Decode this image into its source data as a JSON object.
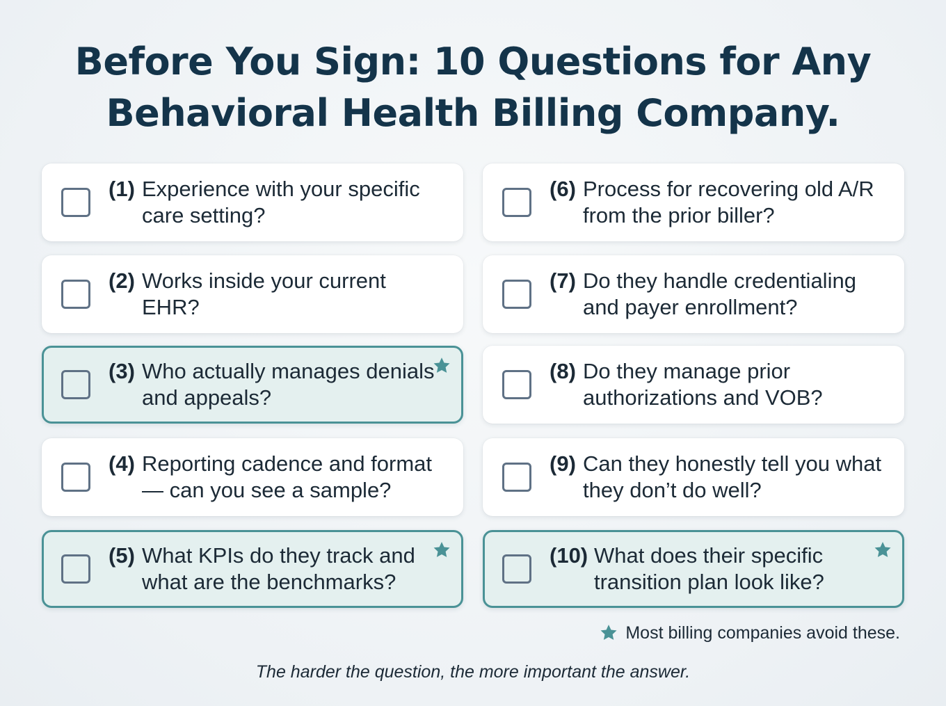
{
  "title": {
    "line1": "Before You Sign: 10 Questions for Any",
    "line2": "Behavioral Health Billing Company."
  },
  "questions": [
    {
      "number": "(1)",
      "text": "Experience with your specific care setting?",
      "highlighted": false
    },
    {
      "number": "(2)",
      "text": "Works inside your current EHR?",
      "highlighted": false
    },
    {
      "number": "(3)",
      "text": "Who actually manages denials and appeals?",
      "highlighted": true
    },
    {
      "number": "(4)",
      "text": "Reporting cadence and format — can you see a sample?",
      "highlighted": false
    },
    {
      "number": "(5)",
      "text": "What KPIs do they track and what are the benchmarks?",
      "highlighted": true
    },
    {
      "number": "(6)",
      "text": "Process for recovering old A/R from the prior biller?",
      "highlighted": false
    },
    {
      "number": "(7)",
      "text": "Do they handle credentialing and payer enrollment?",
      "highlighted": false
    },
    {
      "number": "(8)",
      "text": "Do they manage prior authorizations and VOB?",
      "highlighted": false
    },
    {
      "number": "(9)",
      "text": "Can they honestly tell you what they don’t do well?",
      "highlighted": false
    },
    {
      "number": "(10)",
      "text": "What does their specific transition plan look like?",
      "highlighted": true
    }
  ],
  "legend": {
    "icon": "star-icon",
    "text": "Most billing companies avoid these."
  },
  "footer": "The harder the question, the more important the answer.",
  "colors": {
    "title": "#14344a",
    "accent_teal": "#4a9296",
    "highlight_background": "#e4f0ef",
    "checkbox_border": "#5f7185"
  }
}
